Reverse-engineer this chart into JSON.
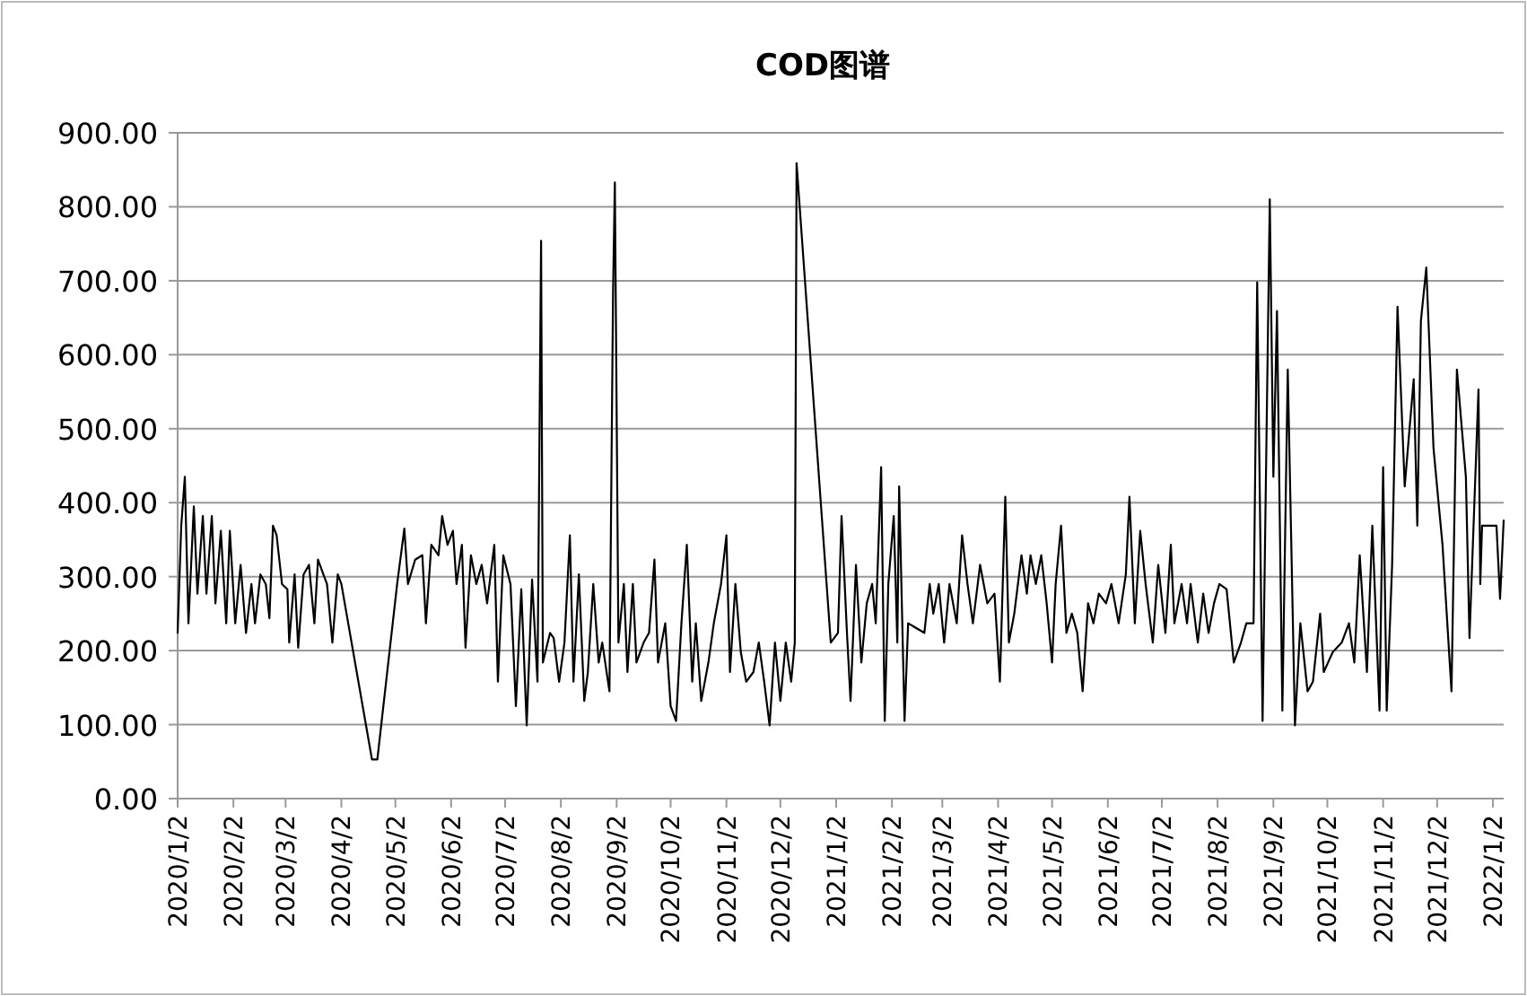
{
  "chart_data": {
    "type": "line",
    "title": "COD图谱",
    "x": [
      "2020-01-02",
      "2020-01-04",
      "2020-01-06",
      "2020-01-08",
      "2020-01-11",
      "2020-01-13",
      "2020-01-16",
      "2020-01-18",
      "2020-01-21",
      "2020-01-23",
      "2020-01-26",
      "2020-01-29",
      "2020-01-31",
      "2020-02-03",
      "2020-02-06",
      "2020-02-09",
      "2020-02-12",
      "2020-02-14",
      "2020-02-17",
      "2020-02-20",
      "2020-02-22",
      "2020-02-24",
      "2020-02-26",
      "2020-02-29",
      "2020-03-03",
      "2020-03-04",
      "2020-03-07",
      "2020-03-09",
      "2020-03-12",
      "2020-03-15",
      "2020-03-18",
      "2020-03-20",
      "2020-03-23",
      "2020-03-25",
      "2020-03-28",
      "2020-03-31",
      "2020-04-02",
      "2020-04-19",
      "2020-04-22",
      "2020-05-03",
      "2020-05-07",
      "2020-05-09",
      "2020-05-13",
      "2020-05-17",
      "2020-05-19",
      "2020-05-22",
      "2020-05-26",
      "2020-05-28",
      "2020-05-31",
      "2020-06-03",
      "2020-06-05",
      "2020-06-08",
      "2020-06-10",
      "2020-06-13",
      "2020-06-16",
      "2020-06-19",
      "2020-06-22",
      "2020-06-26",
      "2020-06-28",
      "2020-07-01",
      "2020-07-05",
      "2020-07-08",
      "2020-07-11",
      "2020-07-14",
      "2020-07-17",
      "2020-07-20",
      "2020-07-22",
      "2020-07-23",
      "2020-07-27",
      "2020-07-29",
      "2020-08-01",
      "2020-08-04",
      "2020-08-07",
      "2020-08-09",
      "2020-08-12",
      "2020-08-15",
      "2020-08-17",
      "2020-08-20",
      "2020-08-23",
      "2020-08-25",
      "2020-08-29",
      "2020-08-31",
      "2020-09-01",
      "2020-09-03",
      "2020-09-06",
      "2020-09-08",
      "2020-09-11",
      "2020-09-13",
      "2020-09-17",
      "2020-09-20",
      "2020-09-23",
      "2020-09-25",
      "2020-09-29",
      "2020-10-02",
      "2020-10-05",
      "2020-10-08",
      "2020-10-11",
      "2020-10-14",
      "2020-10-16",
      "2020-10-19",
      "2020-10-23",
      "2020-10-26",
      "2020-10-30",
      "2020-11-02",
      "2020-11-04",
      "2020-11-07",
      "2020-11-10",
      "2020-11-13",
      "2020-11-17",
      "2020-11-20",
      "2020-11-23",
      "2020-11-26",
      "2020-11-29",
      "2020-12-02",
      "2020-12-05",
      "2020-12-08",
      "2020-12-10",
      "2020-12-11",
      "2020-12-30",
      "2021-01-03",
      "2021-01-05",
      "2021-01-08",
      "2021-01-10",
      "2021-01-13",
      "2021-01-16",
      "2021-01-19",
      "2021-01-22",
      "2021-01-24",
      "2021-01-27",
      "2021-01-29",
      "2021-01-31",
      "2021-02-03",
      "2021-02-05",
      "2021-02-06",
      "2021-02-09",
      "2021-02-11",
      "2021-02-20",
      "2021-02-23",
      "2021-02-25",
      "2021-02-28",
      "2021-03-03",
      "2021-03-06",
      "2021-03-10",
      "2021-03-13",
      "2021-03-16",
      "2021-03-19",
      "2021-03-23",
      "2021-03-27",
      "2021-03-31",
      "2021-04-03",
      "2021-04-06",
      "2021-04-08",
      "2021-04-11",
      "2021-04-15",
      "2021-04-18",
      "2021-04-20",
      "2021-04-23",
      "2021-04-26",
      "2021-04-29",
      "2021-05-02",
      "2021-05-04",
      "2021-05-07",
      "2021-05-10",
      "2021-05-13",
      "2021-05-16",
      "2021-05-19",
      "2021-05-22",
      "2021-05-25",
      "2021-05-28",
      "2021-06-01",
      "2021-06-04",
      "2021-06-08",
      "2021-06-12",
      "2021-06-14",
      "2021-06-17",
      "2021-06-20",
      "2021-06-23",
      "2021-06-27",
      "2021-06-30",
      "2021-07-04",
      "2021-07-07",
      "2021-07-09",
      "2021-07-13",
      "2021-07-16",
      "2021-07-18",
      "2021-07-22",
      "2021-07-25",
      "2021-07-28",
      "2021-07-31",
      "2021-08-03",
      "2021-08-07",
      "2021-08-11",
      "2021-08-15",
      "2021-08-18",
      "2021-08-22",
      "2021-08-24",
      "2021-08-27",
      "2021-08-31",
      "2021-09-02",
      "2021-09-04",
      "2021-09-07",
      "2021-09-10",
      "2021-09-14",
      "2021-09-17",
      "2021-09-21",
      "2021-09-24",
      "2021-09-28",
      "2021-09-30",
      "2021-10-05",
      "2021-10-10",
      "2021-10-14",
      "2021-10-17",
      "2021-10-20",
      "2021-10-24",
      "2021-10-27",
      "2021-10-31",
      "2021-11-02",
      "2021-11-04",
      "2021-11-07",
      "2021-11-10",
      "2021-11-14",
      "2021-11-19",
      "2021-11-21",
      "2021-11-23",
      "2021-11-26",
      "2021-11-30",
      "2021-12-03",
      "2021-12-05",
      "2021-12-10",
      "2021-12-13",
      "2021-12-18",
      "2021-12-20",
      "2021-12-25",
      "2021-12-26",
      "2021-12-27",
      "2022-01-04",
      "2022-01-06",
      "2022-01-08"
    ],
    "values": [
      224,
      369,
      435,
      237,
      395,
      277,
      382,
      277,
      382,
      264,
      362,
      237,
      362,
      237,
      316,
      224,
      290,
      237,
      303,
      290,
      244,
      369,
      356,
      290,
      283,
      211,
      303,
      204,
      303,
      316,
      237,
      323,
      303,
      290,
      211,
      303,
      290,
      53,
      53,
      290,
      365,
      290,
      323,
      329,
      237,
      343,
      329,
      382,
      343,
      362,
      290,
      343,
      204,
      329,
      290,
      316,
      264,
      343,
      158,
      329,
      290,
      125,
      283,
      99,
      296,
      158,
      754,
      184,
      224,
      217,
      158,
      211,
      356,
      158,
      303,
      132,
      171,
      290,
      184,
      211,
      145,
      685,
      833,
      211,
      290,
      171,
      290,
      184,
      211,
      224,
      323,
      184,
      237,
      125,
      105,
      237,
      343,
      158,
      237,
      132,
      184,
      237,
      290,
      356,
      171,
      290,
      198,
      158,
      171,
      211,
      158,
      99,
      211,
      132,
      211,
      158,
      211,
      859,
      211,
      224,
      382,
      224,
      132,
      316,
      184,
      264,
      290,
      237,
      448,
      105,
      290,
      382,
      211,
      422,
      105,
      237,
      224,
      290,
      250,
      290,
      211,
      290,
      237,
      356,
      290,
      237,
      316,
      264,
      277,
      158,
      408,
      211,
      250,
      329,
      277,
      329,
      290,
      329,
      264,
      184,
      290,
      369,
      224,
      250,
      224,
      145,
      264,
      237,
      277,
      264,
      290,
      237,
      303,
      408,
      237,
      362,
      290,
      211,
      316,
      224,
      343,
      237,
      290,
      237,
      290,
      211,
      277,
      224,
      264,
      290,
      283,
      184,
      211,
      237,
      237,
      698,
      105,
      810,
      435,
      659,
      119,
      580,
      99,
      237,
      145,
      158,
      250,
      171,
      198,
      211,
      237,
      184,
      329,
      171,
      369,
      119,
      448,
      119,
      316,
      665,
      422,
      567,
      369,
      646,
      718,
      474,
      395,
      343,
      145,
      580,
      435,
      217,
      553,
      290,
      369,
      369,
      270,
      376
    ],
    "color": "#000000",
    "line_style": "solid",
    "marker": "none",
    "grid": "y",
    "xlim": [
      "2020-01-02",
      "2022-01-08"
    ],
    "xticks": [
      {
        "value": "2020-01-02",
        "label": "2020/1/2"
      },
      {
        "value": "2020-02-02",
        "label": "2020/2/2"
      },
      {
        "value": "2020-03-02",
        "label": "2020/3/2"
      },
      {
        "value": "2020-04-02",
        "label": "2020/4/2"
      },
      {
        "value": "2020-05-02",
        "label": "2020/5/2"
      },
      {
        "value": "2020-06-02",
        "label": "2020/6/2"
      },
      {
        "value": "2020-07-02",
        "label": "2020/7/2"
      },
      {
        "value": "2020-08-02",
        "label": "2020/8/2"
      },
      {
        "value": "2020-09-02",
        "label": "2020/9/2"
      },
      {
        "value": "2020-10-02",
        "label": "2020/10/2"
      },
      {
        "value": "2020-11-02",
        "label": "2020/11/2"
      },
      {
        "value": "2020-12-02",
        "label": "2020/12/2"
      },
      {
        "value": "2021-01-02",
        "label": "2021/1/2"
      },
      {
        "value": "2021-02-02",
        "label": "2021/2/2"
      },
      {
        "value": "2021-03-02",
        "label": "2021/3/2"
      },
      {
        "value": "2021-04-02",
        "label": "2021/4/2"
      },
      {
        "value": "2021-05-02",
        "label": "2021/5/2"
      },
      {
        "value": "2021-06-02",
        "label": "2021/6/2"
      },
      {
        "value": "2021-07-02",
        "label": "2021/7/2"
      },
      {
        "value": "2021-08-02",
        "label": "2021/8/2"
      },
      {
        "value": "2021-09-02",
        "label": "2021/9/2"
      },
      {
        "value": "2021-10-02",
        "label": "2021/10/2"
      },
      {
        "value": "2021-11-02",
        "label": "2021/11/2"
      },
      {
        "value": "2021-12-02",
        "label": "2021/12/2"
      },
      {
        "value": "2022-01-02",
        "label": "2022/1/2"
      }
    ],
    "ylim": [
      0,
      900
    ],
    "yticks": [
      {
        "value": 0,
        "label": "0.00"
      },
      {
        "value": 100,
        "label": "100.00"
      },
      {
        "value": 200,
        "label": "200.00"
      },
      {
        "value": 300,
        "label": "300.00"
      },
      {
        "value": 400,
        "label": "400.00"
      },
      {
        "value": 500,
        "label": "500.00"
      },
      {
        "value": 600,
        "label": "600.00"
      },
      {
        "value": 700,
        "label": "700.00"
      },
      {
        "value": 800,
        "label": "800.00"
      },
      {
        "value": 900,
        "label": "900.00"
      }
    ]
  }
}
